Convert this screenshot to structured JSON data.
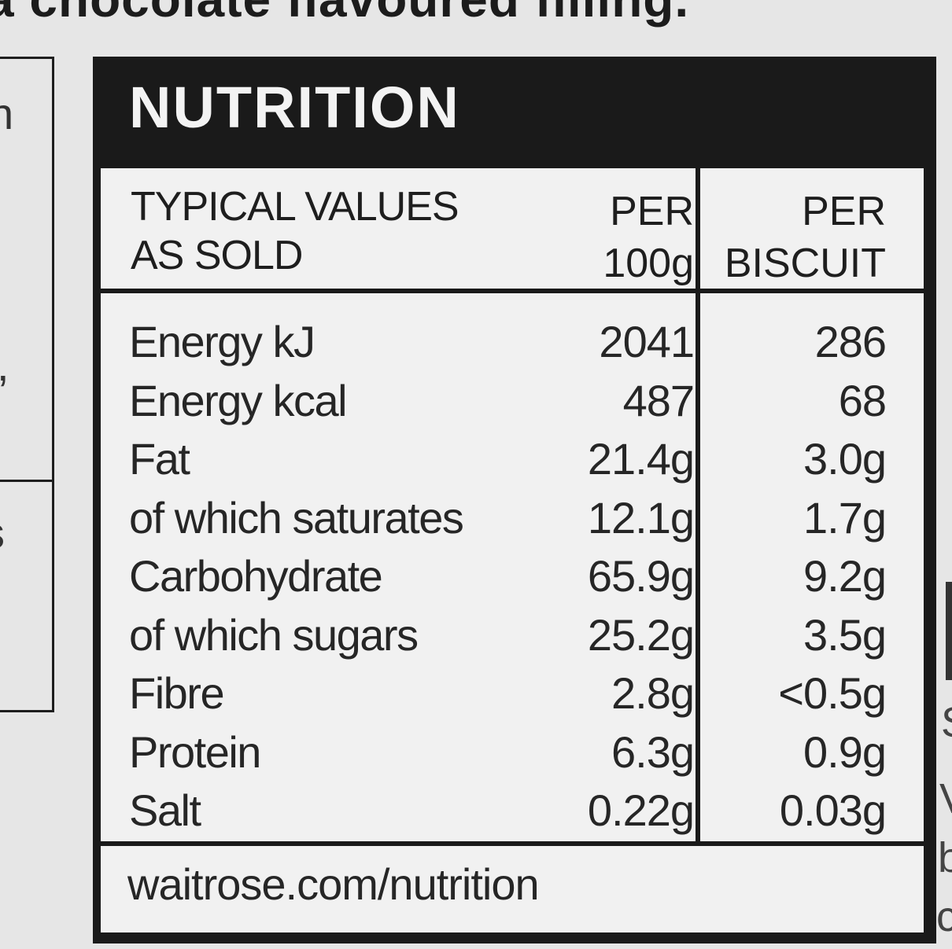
{
  "top_text": "a chocolate flavoured filling.",
  "nutrition": {
    "title": "NUTRITION",
    "header": {
      "typical_values": "TYPICAL VALUES",
      "as_sold": "AS SOLD",
      "col1_line1": "PER",
      "col1_line2": "100g",
      "col2_line1": "PER",
      "col2_line2": "BISCUIT"
    },
    "rows": [
      {
        "name": "Energy kJ",
        "per_100g": "2041",
        "per_biscuit": "286"
      },
      {
        "name": "Energy kcal",
        "per_100g": "487",
        "per_biscuit": "68"
      },
      {
        "name": "Fat",
        "per_100g": "21.4g",
        "per_biscuit": "3.0g"
      },
      {
        "name": "of which saturates",
        "per_100g": "12.1g",
        "per_biscuit": "1.7g"
      },
      {
        "name": "Carbohydrate",
        "per_100g": "65.9g",
        "per_biscuit": "9.2g"
      },
      {
        "name": "of which sugars",
        "per_100g": "25.2g",
        "per_biscuit": "3.5g"
      },
      {
        "name": "Fibre",
        "per_100g": "2.8g",
        "per_biscuit": "<0.5g"
      },
      {
        "name": "Protein",
        "per_100g": "6.3g",
        "per_biscuit": "0.9g"
      },
      {
        "name": "Salt",
        "per_100g": "0.22g",
        "per_biscuit": "0.03g"
      }
    ],
    "footer": "waitrose.com/nutrition"
  },
  "edge_fragments": {
    "left_1": "n",
    "left_2": ",",
    "left_3": "s",
    "right_1": "S",
    "right_2": "V",
    "right_3": "b",
    "right_4": "c"
  }
}
